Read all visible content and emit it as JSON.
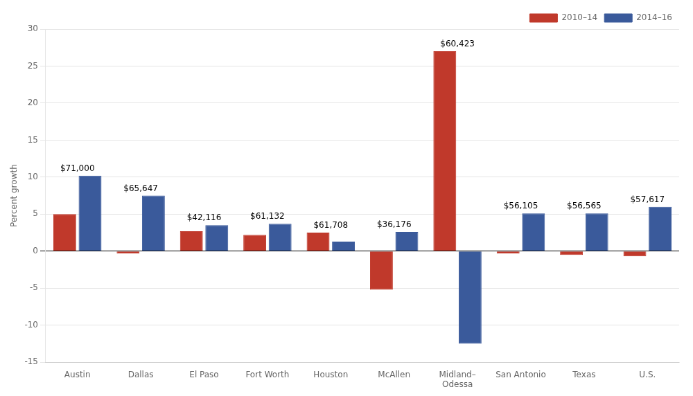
{
  "chart_data": {
    "type": "bar",
    "ylabel": "Percent growth",
    "categories": [
      "Austin",
      "Dallas",
      "El Paso",
      "Fort Worth",
      "Houston",
      "McAllen",
      "Midland–\nOdessa",
      "San Antonio",
      "Texas",
      "U.S."
    ],
    "series": [
      {
        "name": "2010–14",
        "color": "#c0392b",
        "values": [
          5.0,
          -0.3,
          2.7,
          2.2,
          2.5,
          -5.2,
          27.0,
          -0.3,
          -0.5,
          -0.7
        ]
      },
      {
        "name": "2014–16",
        "color": "#3a5a9b",
        "values": [
          10.2,
          7.5,
          3.5,
          3.7,
          1.3,
          2.6,
          -12.5,
          5.1,
          5.1,
          6.0
        ]
      }
    ],
    "annotations": [
      "$71,000",
      "$65,647",
      "$42,116",
      "$61,132",
      "$61,708",
      "$36,176",
      "$60,423",
      "$56,105",
      "$56,565",
      "$57,617"
    ],
    "ylim": [
      -15,
      30
    ],
    "yticks": [
      -15,
      -10,
      -5,
      0,
      5,
      10,
      15,
      20,
      25,
      30
    ],
    "grid": true,
    "legend": "upper right"
  }
}
